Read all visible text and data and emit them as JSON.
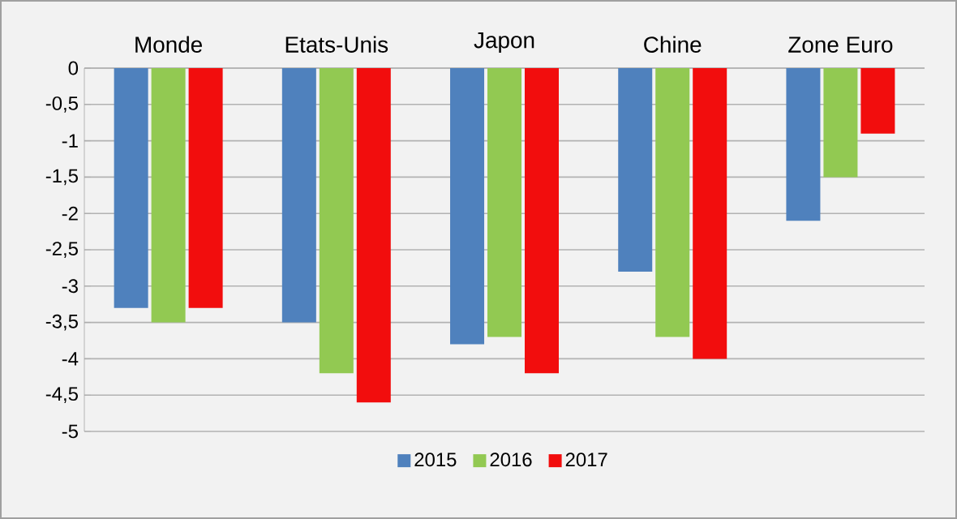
{
  "chart_data": {
    "type": "bar",
    "categories": [
      "Monde",
      "Etats-Unis",
      "Japon",
      "Chine",
      "Zone Euro"
    ],
    "series": [
      {
        "name": "2015",
        "color": "#4f81bd",
        "values": [
          -3.3,
          -3.5,
          -3.8,
          -2.8,
          -2.1
        ]
      },
      {
        "name": "2016",
        "color": "#92c952",
        "values": [
          -3.5,
          -4.2,
          -3.7,
          -3.7,
          -1.5
        ]
      },
      {
        "name": "2017",
        "color": "#f20d0d",
        "values": [
          -3.3,
          -4.6,
          -4.2,
          -4.0,
          -0.9
        ]
      }
    ],
    "ylim": [
      -5,
      0
    ],
    "yticks": [
      {
        "value": -5,
        "label": "-5"
      },
      {
        "value": -4.5,
        "label": "-4,5"
      },
      {
        "value": -4,
        "label": "-4"
      },
      {
        "value": -3.5,
        "label": "-3,5"
      },
      {
        "value": -3,
        "label": "-3"
      },
      {
        "value": -2.5,
        "label": "-2,5"
      },
      {
        "value": -2,
        "label": "-2"
      },
      {
        "value": -1.5,
        "label": "-1,5"
      },
      {
        "value": -1,
        "label": "-1"
      },
      {
        "value": -0.5,
        "label": "-0,5"
      },
      0
    ],
    "grid": "y",
    "legend": "bottom"
  }
}
